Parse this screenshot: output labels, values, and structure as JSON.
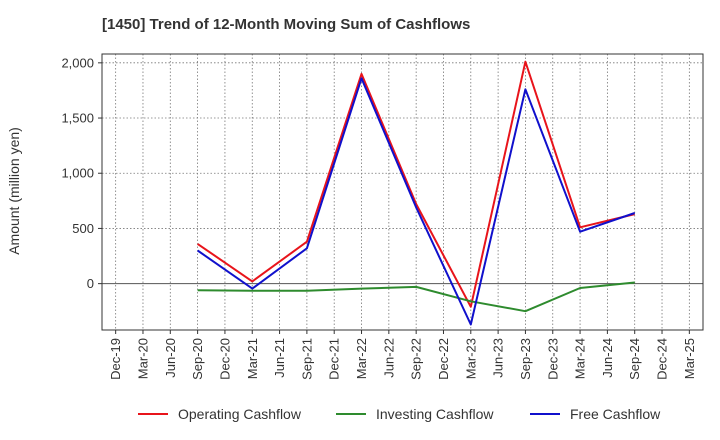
{
  "chart_data": {
    "type": "line",
    "title": "[1450]  Trend of 12-Month Moving Sum of Cashflows",
    "xlabel": "",
    "ylabel": "Amount (million yen)",
    "ylim": [
      -420,
      2080
    ],
    "yticks": [
      0,
      500,
      1000,
      1500,
      2000
    ],
    "ytick_labels": [
      "0",
      "500",
      "1,000",
      "1,500",
      "2,000"
    ],
    "categories": [
      "Dec-19",
      "Mar-20",
      "Jun-20",
      "Sep-20",
      "Dec-20",
      "Mar-21",
      "Jun-21",
      "Sep-21",
      "Dec-21",
      "Mar-22",
      "Jun-22",
      "Sep-22",
      "Dec-22",
      "Mar-23",
      "Jun-23",
      "Sep-23",
      "Dec-23",
      "Mar-24",
      "Jun-24",
      "Sep-24",
      "Dec-24",
      "Mar-25"
    ],
    "grid": true,
    "legend_position": "bottom",
    "series": [
      {
        "name": "Operating Cashflow",
        "color": "#e8141b",
        "values": [
          null,
          null,
          null,
          360,
          null,
          20,
          null,
          380,
          null,
          1900,
          null,
          720,
          null,
          -210,
          null,
          2010,
          null,
          510,
          null,
          630,
          null,
          null
        ]
      },
      {
        "name": "Investing Cashflow",
        "color": "#2e8b2e",
        "values": [
          null,
          null,
          null,
          -60,
          null,
          -65,
          null,
          -65,
          null,
          -45,
          null,
          -30,
          null,
          -160,
          null,
          -250,
          null,
          -40,
          null,
          10,
          null,
          null
        ]
      },
      {
        "name": "Free Cashflow",
        "color": "#1010cc",
        "values": [
          null,
          null,
          null,
          300,
          null,
          -45,
          null,
          320,
          null,
          1860,
          null,
          690,
          null,
          -370,
          null,
          1760,
          null,
          470,
          null,
          640,
          null,
          null
        ]
      }
    ]
  }
}
